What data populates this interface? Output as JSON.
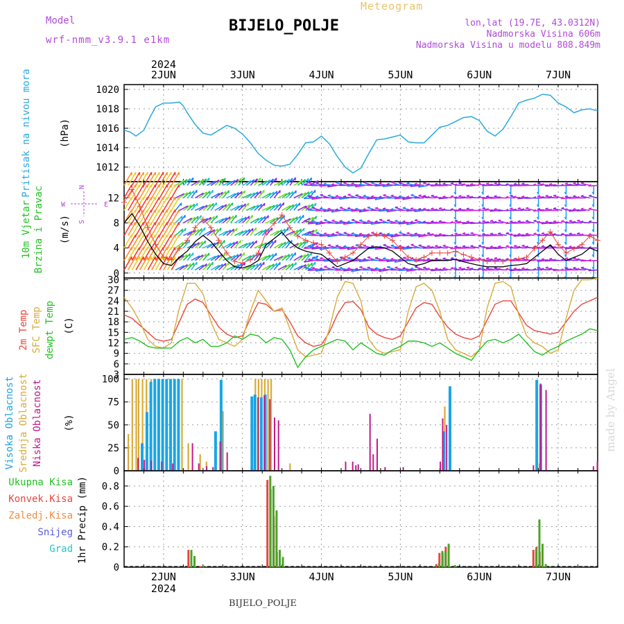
{
  "header": {
    "model_label": "Model",
    "model_name": "wrf-nmm_v3.9.1 e1km",
    "station": "BIJELO_POLJE",
    "product": "Meteogram",
    "lonlat": "lon,lat (19.7E, 43.0312N)",
    "elevation": "Nadmorska Visina 606m",
    "elevation_model": "Nadmorska Visina u modelu 808.849m",
    "watermark": "made by Angel",
    "footer_station": "BIJELO_POLJE"
  },
  "colors": {
    "pressure": "#29a9e0",
    "temp2m": "#e8463c",
    "sfc": "#d9aa3a",
    "dew": "#22c022",
    "high_cloud": "#1aa5e6",
    "mid_cloud": "#d9aa3a",
    "low_cloud": "#c2188a",
    "total_precip": "#4aa32a",
    "conv_precip": "#e8463c",
    "purple_text": "#b04ad8"
  },
  "chart_data": [
    {
      "type": "line",
      "panel": "pressure",
      "ylabel_lines": [
        "Pritisak na nivou mora"
      ],
      "unit": "(hPa)",
      "top_ticks": [
        "2JUN",
        "3JUN",
        "4JUN",
        "5JUN",
        "6JUN",
        "7JUN"
      ],
      "top_year": "2024",
      "x_unit": "days from 2JUN 00UTC",
      "xlim": [
        -0.5,
        5.5
      ],
      "ylim": [
        1010.5,
        1020.5
      ],
      "yticks": [
        1012,
        1014,
        1016,
        1018,
        1020
      ],
      "series": [
        {
          "x": [
            -0.5,
            -0.42,
            -0.35,
            -0.25,
            -0.18,
            -0.1,
            0.0,
            0.1,
            0.2,
            0.25,
            0.3,
            0.4,
            0.5,
            0.6,
            0.7,
            0.8,
            0.9,
            1.0,
            1.1,
            1.2,
            1.3,
            1.4,
            1.5,
            1.6,
            1.7,
            1.8,
            1.9,
            2.0,
            2.1,
            2.2,
            2.3,
            2.4,
            2.5,
            2.6,
            2.7,
            2.8,
            2.9,
            3.0,
            3.1,
            3.2,
            3.3,
            3.4,
            3.5,
            3.6,
            3.7,
            3.8,
            3.9,
            4.0,
            4.1,
            4.2,
            4.3,
            4.4,
            4.5,
            4.6,
            4.7,
            4.8,
            4.9,
            5.0,
            5.1,
            5.2,
            5.3,
            5.4,
            5.5
          ],
          "y": [
            1015.8,
            1015.6,
            1015.2,
            1015.8,
            1017.0,
            1018.2,
            1018.6,
            1018.6,
            1018.7,
            1018.3,
            1017.6,
            1016.4,
            1015.5,
            1015.3,
            1015.8,
            1016.3,
            1016.0,
            1015.4,
            1014.5,
            1013.4,
            1012.7,
            1012.2,
            1012.1,
            1012.3,
            1013.3,
            1014.5,
            1014.6,
            1015.2,
            1014.4,
            1013.1,
            1012.0,
            1011.4,
            1011.9,
            1013.4,
            1014.8,
            1014.9,
            1015.1,
            1015.3,
            1014.6,
            1014.5,
            1014.5,
            1015.3,
            1016.1,
            1016.3,
            1016.7,
            1017.1,
            1017.2,
            1016.8,
            1015.7,
            1015.2,
            1015.9,
            1017.2,
            1018.6,
            1018.9,
            1019.1,
            1019.5,
            1019.4,
            1018.6,
            1018.2,
            1017.6,
            1017.9,
            1018.0,
            1017.8
          ]
        }
      ]
    },
    {
      "type": "line",
      "panel": "wind",
      "ylabel_lines": [
        "10m Vjetar",
        "Brzina i Pravac"
      ],
      "unit": "(m/s)",
      "compass": [
        "N",
        "W",
        "E",
        "S"
      ],
      "xlim": [
        -0.5,
        5.5
      ],
      "ylim": [
        -0.8,
        14.6
      ],
      "yticks": [
        0,
        4,
        8,
        12
      ],
      "series": [
        {
          "name": "speed",
          "x": [
            -0.5,
            -0.4,
            -0.3,
            -0.2,
            -0.1,
            0.0,
            0.1,
            0.2,
            0.3,
            0.4,
            0.5,
            0.6,
            0.7,
            0.8,
            0.9,
            1.0,
            1.1,
            1.2,
            1.3,
            1.4,
            1.5,
            1.6,
            1.7,
            1.8,
            1.9,
            2.0,
            2.1,
            2.2,
            2.3,
            2.4,
            2.5,
            2.6,
            2.7,
            2.8,
            2.9,
            3.0,
            3.1,
            3.2,
            3.3,
            3.4,
            3.5,
            3.6,
            3.7,
            3.8,
            3.9,
            4.0,
            4.1,
            4.2,
            4.3,
            4.4,
            4.5,
            4.6,
            4.7,
            4.8,
            4.9,
            5.0,
            5.1,
            5.2,
            5.3,
            5.4,
            5.5
          ],
          "y": [
            8,
            9.5,
            7.5,
            5,
            3,
            1.5,
            1.2,
            2.5,
            3.5,
            5,
            6,
            5,
            3.5,
            2,
            1,
            0.8,
            1.2,
            2,
            4.5,
            5.5,
            6.5,
            5,
            4,
            3.5,
            3.2,
            3,
            2,
            1,
            1.5,
            2,
            3,
            4,
            4.2,
            4,
            3.5,
            2.5,
            1.5,
            1.2,
            1.5,
            2,
            2,
            2,
            2.2,
            1.8,
            1.5,
            1.2,
            1,
            1,
            1,
            1.2,
            1.3,
            1.5,
            2.5,
            3.5,
            4.5,
            3,
            2,
            2.5,
            3,
            4,
            3.5
          ]
        }
      ]
    },
    {
      "type": "line",
      "panel": "temperature",
      "ylabel_lines": [
        "2m Temp",
        "SFC Temp",
        "dewpt Temp"
      ],
      "unit": "(C)",
      "xlim": [
        -0.5,
        5.5
      ],
      "ylim": [
        3,
        30.5
      ],
      "yticks": [
        3,
        6,
        9,
        12,
        15,
        18,
        21,
        24,
        27,
        30
      ],
      "series": [
        {
          "name": "2m Temp",
          "x": [
            -0.5,
            -0.4,
            -0.3,
            -0.2,
            -0.1,
            0.0,
            0.1,
            0.2,
            0.3,
            0.4,
            0.5,
            0.6,
            0.7,
            0.8,
            0.9,
            1.0,
            1.1,
            1.2,
            1.3,
            1.4,
            1.5,
            1.6,
            1.7,
            1.8,
            1.9,
            2.0,
            2.1,
            2.2,
            2.3,
            2.4,
            2.5,
            2.6,
            2.7,
            2.8,
            2.9,
            3.0,
            3.1,
            3.2,
            3.3,
            3.4,
            3.5,
            3.6,
            3.7,
            3.8,
            3.9,
            4.0,
            4.1,
            4.2,
            4.3,
            4.4,
            4.5,
            4.6,
            4.7,
            4.8,
            4.9,
            5.0,
            5.1,
            5.2,
            5.3,
            5.4,
            5.5
          ],
          "y": [
            20,
            19,
            17,
            15,
            13,
            12.5,
            13,
            18,
            23,
            24.5,
            23.5,
            20,
            16.5,
            14.5,
            13.5,
            14,
            19,
            23.5,
            23,
            21,
            21.5,
            18,
            14,
            12,
            11,
            11.5,
            15,
            20,
            23.5,
            23.8,
            21.5,
            16.5,
            14.5,
            13.5,
            13,
            14,
            18,
            22,
            23.5,
            23,
            19.5,
            16.5,
            14.5,
            13.5,
            13,
            14,
            18.5,
            23,
            24,
            24,
            20.5,
            17,
            15.5,
            15,
            14.5,
            15,
            18,
            21,
            23,
            24,
            25
          ]
        },
        {
          "name": "SFC Temp",
          "x": [
            -0.5,
            -0.4,
            -0.3,
            -0.2,
            -0.1,
            0.0,
            0.1,
            0.2,
            0.3,
            0.4,
            0.5,
            0.6,
            0.7,
            0.8,
            0.9,
            1.0,
            1.1,
            1.2,
            1.3,
            1.4,
            1.5,
            1.6,
            1.7,
            1.8,
            1.9,
            2.0,
            2.1,
            2.2,
            2.3,
            2.4,
            2.5,
            2.6,
            2.7,
            2.8,
            2.9,
            3.0,
            3.1,
            3.2,
            3.3,
            3.4,
            3.5,
            3.6,
            3.7,
            3.8,
            3.9,
            4.0,
            4.1,
            4.2,
            4.3,
            4.4,
            4.5,
            4.6,
            4.7,
            4.8,
            4.9,
            5.0,
            5.1,
            5.2,
            5.3,
            5.4,
            5.5
          ],
          "y": [
            25,
            22,
            18,
            13,
            11,
            10.5,
            12,
            22,
            29,
            29,
            26,
            18,
            13,
            12,
            11,
            13,
            21,
            27,
            24,
            21,
            22,
            16,
            10,
            8,
            8.5,
            9,
            16,
            25,
            29.5,
            29,
            24,
            13,
            10,
            9,
            9.5,
            10,
            21,
            28,
            29,
            27,
            21,
            13,
            10,
            9,
            8,
            10,
            22,
            29,
            29.5,
            28,
            20,
            14,
            12,
            11,
            9,
            10,
            19,
            27,
            30,
            30,
            31
          ]
        },
        {
          "name": "dewpt Temp",
          "x": [
            -0.5,
            -0.4,
            -0.3,
            -0.2,
            -0.1,
            0.0,
            0.1,
            0.2,
            0.3,
            0.4,
            0.5,
            0.6,
            0.7,
            0.8,
            0.9,
            1.0,
            1.1,
            1.2,
            1.3,
            1.4,
            1.5,
            1.6,
            1.7,
            1.8,
            1.9,
            2.0,
            2.1,
            2.2,
            2.3,
            2.4,
            2.5,
            2.6,
            2.7,
            2.8,
            2.9,
            3.0,
            3.1,
            3.2,
            3.3,
            3.4,
            3.5,
            3.6,
            3.7,
            3.8,
            3.9,
            4.0,
            4.1,
            4.2,
            4.3,
            4.4,
            4.5,
            4.6,
            4.7,
            4.8,
            4.9,
            5.0,
            5.1,
            5.2,
            5.3,
            5.4,
            5.5
          ],
          "y": [
            13,
            13.5,
            12.5,
            11,
            10.5,
            10.5,
            10.5,
            12.5,
            13.5,
            12,
            13,
            11,
            11,
            12,
            14,
            13,
            14.5,
            14,
            12,
            13.5,
            13,
            10,
            5,
            8,
            10,
            11,
            12,
            13,
            12.5,
            10,
            12,
            10.5,
            9,
            8.5,
            10,
            11,
            12.5,
            12.5,
            12,
            11,
            12,
            10.5,
            9,
            8,
            7,
            10,
            12.5,
            13,
            12,
            13,
            14.5,
            12,
            9.5,
            8.5,
            10,
            11,
            12.5,
            13.5,
            14.5,
            16,
            15.5
          ]
        }
      ]
    },
    {
      "type": "bar",
      "panel": "cloud",
      "ylabel_lines": [
        "Visoka Oblacnost",
        "Srednja Oblacnost",
        "Niska Oblacnost"
      ],
      "unit": "(%)",
      "xlim": [
        -0.5,
        5.5
      ],
      "ylim": [
        0,
        105
      ],
      "yticks": [
        0,
        25,
        50,
        75,
        100
      ],
      "series": [
        {
          "name": "Visoka Oblacnost",
          "x": [
            -0.28,
            -0.22,
            -0.17,
            -0.12,
            -0.07,
            -0.02,
            0.03,
            0.08,
            0.13,
            0.18,
            0.65,
            0.72,
            1.11,
            1.15,
            1.23,
            1.28,
            3.54,
            3.62,
            4.72,
            4.77
          ],
          "y": [
            30,
            64,
            97,
            100,
            100,
            100,
            100,
            100,
            100,
            100,
            43,
            99,
            81,
            83,
            80,
            83,
            43,
            92,
            99,
            94
          ]
        },
        {
          "name": "Srednja Oblacnost",
          "x": [
            -0.43,
            -0.38,
            -0.33,
            -0.3,
            -0.25,
            -0.2,
            -0.14,
            -0.09,
            -0.04,
            0.01,
            0.06,
            0.11,
            0.16,
            0.21,
            0.25,
            0.33,
            0.48,
            0.56,
            0.77,
            1.18,
            1.22,
            1.26,
            1.3,
            1.34,
            1.38,
            1.62,
            3.58,
            4.78
          ],
          "y": [
            40,
            100,
            100,
            100,
            100,
            100,
            100,
            100,
            100,
            100,
            100,
            100,
            100,
            100,
            100,
            30,
            18,
            10,
            65,
            100,
            100,
            100,
            100,
            100,
            100,
            8,
            70,
            8
          ]
        },
        {
          "name": "Niska Oblacnost",
          "x": [
            -0.35,
            -0.27,
            -0.18,
            -0.05,
            0.09,
            0.34,
            0.42,
            0.52,
            0.6,
            0.69,
            0.78,
            1.17,
            1.25,
            1.32,
            1.38,
            1.43,
            2.28,
            2.37,
            2.41,
            2.44,
            2.59,
            2.63,
            2.68,
            2.78,
            3.01,
            3.48,
            3.51,
            3.56,
            4.66,
            4.75,
            4.82,
            5.42,
            5.47
          ],
          "y": [
            14,
            12,
            11,
            10,
            8,
            30,
            8,
            5,
            4,
            32,
            20,
            80,
            82,
            78,
            58,
            55,
            10,
            10,
            6,
            7,
            62,
            18,
            35,
            4,
            4,
            10,
            57,
            50,
            6,
            95,
            88,
            5,
            10
          ]
        }
      ]
    },
    {
      "type": "bar",
      "panel": "precip",
      "ylabel_lines": [
        "1hr Precip (mm)"
      ],
      "legend": [
        "Ukupna Kisa",
        "Konvek.Kisa",
        "Zaledj.Kisa",
        "Snijeg",
        "Grad"
      ],
      "legend_colors": [
        "#22c022",
        "#e8463c",
        "#f08a3c",
        "#5a5ae6",
        "#26c2c2"
      ],
      "bottom_ticks": [
        "2JUN",
        "3JUN",
        "4JUN",
        "5JUN",
        "6JUN",
        "7JUN"
      ],
      "bottom_year": "2024",
      "xlim": [
        -0.5,
        5.5
      ],
      "ylim": [
        0,
        0.95
      ],
      "yticks": [
        0,
        0.2,
        0.4,
        0.6,
        0.8
      ],
      "series": [
        {
          "name": "Ukupna Kisa",
          "x": [
            0.33,
            0.37,
            0.48,
            1.33,
            1.37,
            1.41,
            1.45,
            1.49,
            3.47,
            3.51,
            3.55,
            3.59,
            3.67,
            4.7,
            4.74,
            4.78,
            4.82
          ],
          "y": [
            0.17,
            0.11,
            0.01,
            0.9,
            0.8,
            0.56,
            0.17,
            0.1,
            0.04,
            0.16,
            0.16,
            0.23,
            0.02,
            0.18,
            0.47,
            0.23,
            0.03
          ]
        },
        {
          "name": "Konvek.Kisa",
          "x": [
            0.32,
            0.47,
            1.32,
            1.36,
            1.4,
            1.44,
            3.46,
            3.5,
            3.54,
            3.58,
            4.69,
            4.73,
            4.77
          ],
          "y": [
            0.17,
            0.01,
            0.86,
            0.77,
            0.5,
            0.15,
            0.03,
            0.14,
            0.14,
            0.2,
            0.17,
            0.2,
            0.15
          ]
        }
      ]
    }
  ]
}
